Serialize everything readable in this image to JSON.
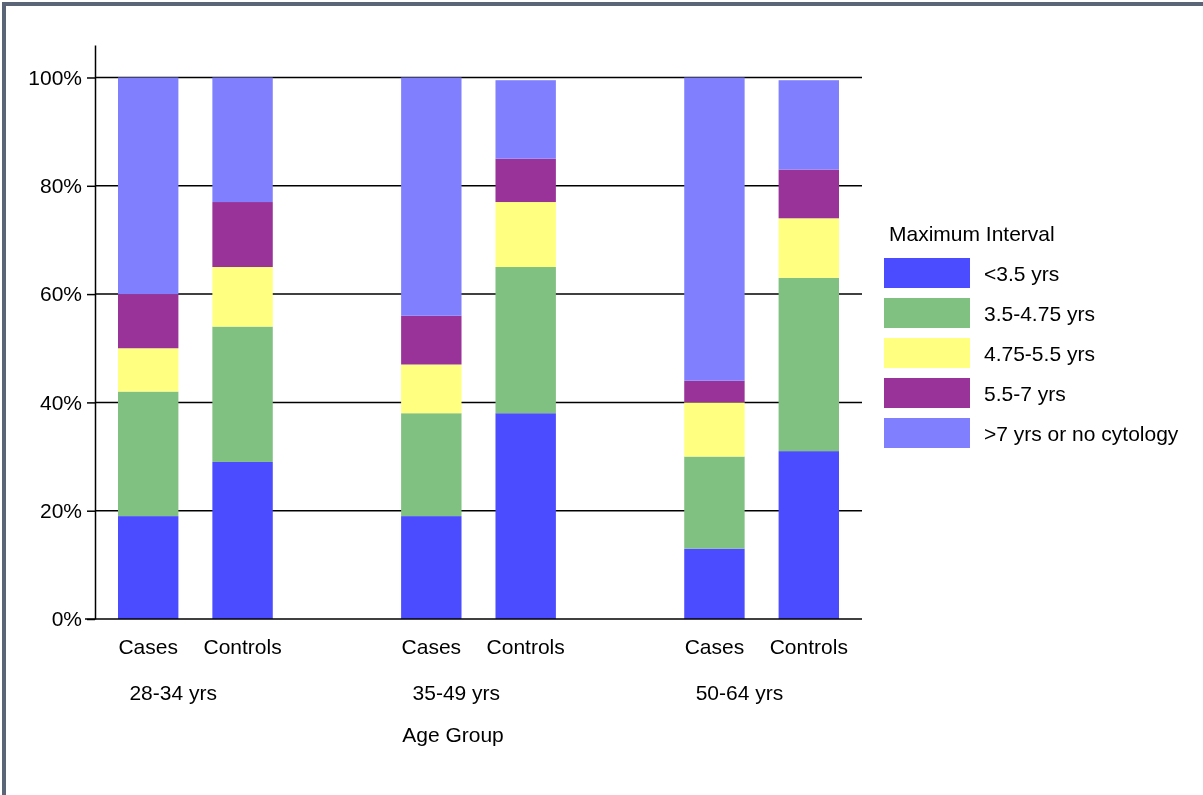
{
  "chart_data": {
    "type": "bar",
    "stacked": true,
    "categories": [
      "Cases",
      "Controls",
      null,
      "Cases",
      "Controls",
      null,
      "Cases",
      "Controls"
    ],
    "series": [
      {
        "name": "<3.5 yrs",
        "color": "#4b4bff",
        "values": [
          19,
          29,
          null,
          19,
          38,
          null,
          13,
          31
        ]
      },
      {
        "name": "3.5-4.75 yrs",
        "color": "#80c080",
        "values": [
          23,
          25,
          null,
          19,
          27,
          null,
          17,
          32
        ]
      },
      {
        "name": "4.75-5.5 yrs",
        "color": "#ffff80",
        "values": [
          8,
          11,
          null,
          9,
          12,
          null,
          10,
          11
        ]
      },
      {
        "name": "5.5-7 yrs",
        "color": "#993399",
        "values": [
          10,
          12,
          null,
          9,
          8,
          null,
          4,
          9
        ]
      },
      {
        "name": ">7 yrs or no cytology",
        "color": "#8080ff",
        "values": [
          40,
          23,
          null,
          44,
          14.5,
          null,
          56,
          16.5
        ]
      }
    ],
    "ylim": [
      0,
      106
    ],
    "yticks": [
      {
        "value": 0,
        "label": "0%"
      },
      {
        "value": 20,
        "label": "20%"
      },
      {
        "value": 40,
        "label": "40%"
      },
      {
        "value": 60,
        "label": "60%"
      },
      {
        "value": 80,
        "label": "80%"
      },
      {
        "value": 100,
        "label": "100%"
      }
    ],
    "grid": "y",
    "legend": "right",
    "legend_title": "Maximum Interval",
    "xlabel": "Age Group",
    "annotations": [
      "28-34 yrs",
      "35-49 yrs",
      "50-64 yrs"
    ]
  }
}
